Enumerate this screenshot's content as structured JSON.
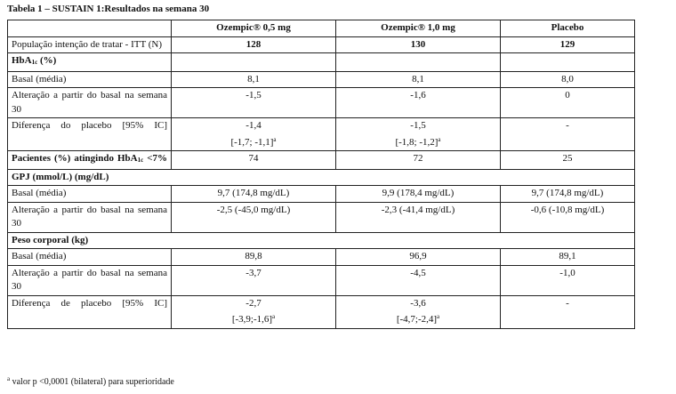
{
  "title": "Tabela 1 – SUSTAIN 1:Resultados na semana 30",
  "headers": [
    "",
    "Ozempic® 0,5 mg",
    "Ozempic® 1,0 mg",
    "Placebo"
  ],
  "itt": {
    "label": "População intenção de tratar - ITT (N)",
    "values": [
      "128",
      "130",
      "129"
    ]
  },
  "hba1c": {
    "section_pre": "HbA",
    "section_sub": "1c",
    "section_post": " (%)",
    "basal": {
      "label": "Basal (média)",
      "values": [
        "8,1",
        "8,1",
        "8,0"
      ]
    },
    "change": {
      "label": "Alteração a partir do basal na semana 30",
      "values": [
        "-1,5",
        "-1,6",
        "0"
      ]
    },
    "diff": {
      "label": "Diferença do placebo [95% IC]",
      "values": [
        "-1,4",
        "-1,5",
        "-"
      ],
      "ci": [
        "[-1,7; -1,1]",
        "[-1,8; -1,2]",
        ""
      ],
      "marker": "a"
    },
    "patients": {
      "label_pre": "Pacientes (%) atingindo HbA",
      "label_sub": "1c",
      "label_post": " <7%",
      "values": [
        "74",
        "72",
        "25"
      ]
    }
  },
  "gpj": {
    "section": "GPJ (mmol/L) (mg/dL)",
    "basal": {
      "label": "Basal (média)",
      "values": [
        "9,7 (174,8 mg/dL)",
        "9,9 (178,4 mg/dL)",
        "9,7 (174,8 mg/dL)"
      ]
    },
    "change": {
      "label": "Alteração a partir do basal na semana 30",
      "values": [
        "-2,5 (-45,0 mg/dL)",
        "-2,3 (-41,4 mg/dL)",
        "-0,6 (-10,8 mg/dL)"
      ]
    }
  },
  "weight": {
    "section": "Peso corporal (kg)",
    "basal": {
      "label": "Basal (média)",
      "values": [
        "89,8",
        "96,9",
        "89,1"
      ]
    },
    "change": {
      "label": "Alteração a partir do basal na semana 30",
      "values": [
        "-3,7",
        "-4,5",
        "-1,0"
      ]
    },
    "diff": {
      "label": "Diferença de placebo [95% IC]",
      "values": [
        "-2,7",
        "-3,6",
        "-"
      ],
      "ci": [
        "[-3,9;-1,6]",
        "[-4,7;-2,4]",
        ""
      ],
      "marker": "a"
    }
  },
  "footnote": {
    "marker": "a",
    "text": " valor p <0,0001 (bilateral) para superioridade"
  }
}
